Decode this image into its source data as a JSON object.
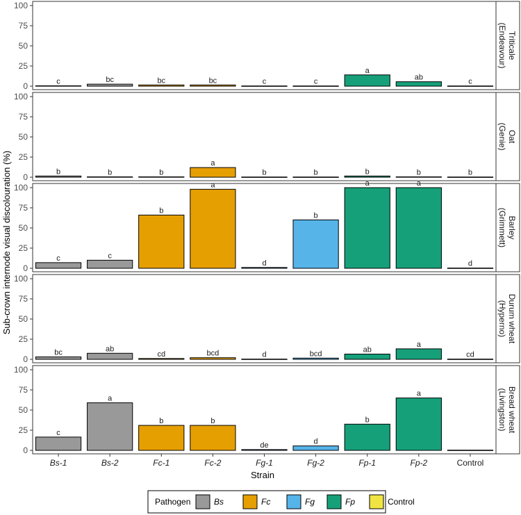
{
  "chart_data": {
    "type": "bar",
    "xlabel": "Strain",
    "ylabel": "Sub-crown internode visual discolouration (%)",
    "ylim": [
      0,
      100
    ],
    "yticks": [
      0,
      25,
      50,
      75,
      100
    ],
    "categories": [
      "Bs-1",
      "Bs-2",
      "Fc-1",
      "Fc-2",
      "Fg-1",
      "Fg-2",
      "Fp-1",
      "Fp-2",
      "Control"
    ],
    "category_pathogen": [
      "Bs",
      "Bs",
      "Fc",
      "Fc",
      "Fg",
      "Fg",
      "Fp",
      "Fp",
      "Control"
    ],
    "category_italic": [
      true,
      true,
      true,
      true,
      true,
      true,
      true,
      true,
      false
    ],
    "pathogen_colors": {
      "Bs": "#999999",
      "Fc": "#E69F00",
      "Fg": "#56B4E9",
      "Fp": "#16A07A",
      "Control": "#F0E442"
    },
    "panels": [
      {
        "strip_lines": [
          "Triticale",
          "(Endeavour)"
        ],
        "values": [
          0.5,
          2.5,
          1.5,
          1.5,
          0.3,
          0.3,
          14,
          5.5,
          0.3
        ],
        "letters": [
          "c",
          "bc",
          "bc",
          "bc",
          "c",
          "c",
          "a",
          "ab",
          "c"
        ]
      },
      {
        "strip_lines": [
          "Oat",
          "(Genie)"
        ],
        "values": [
          1.5,
          0.5,
          0.5,
          12,
          0.3,
          0.3,
          1.5,
          0.5,
          0.3
        ],
        "letters": [
          "b",
          "b",
          "b",
          "a",
          "b",
          "b",
          "b",
          "b",
          "b"
        ]
      },
      {
        "strip_lines": [
          "Barley",
          "(Grimmett)"
        ],
        "values": [
          7,
          10,
          66,
          98,
          1,
          60,
          100,
          100,
          0.3
        ],
        "letters": [
          "c",
          "c",
          "b",
          "a",
          "d",
          "b",
          "a",
          "a",
          "d"
        ]
      },
      {
        "strip_lines": [
          "Durum wheat",
          "(Hyperno)"
        ],
        "values": [
          3,
          7.5,
          1,
          2,
          0.3,
          1.5,
          6.5,
          13,
          0.3
        ],
        "letters": [
          "bc",
          "ab",
          "cd",
          "bcd",
          "d",
          "bcd",
          "ab",
          "a",
          "cd"
        ]
      },
      {
        "strip_lines": [
          "Bread wheat",
          "(Livingston)"
        ],
        "values": [
          16.5,
          59,
          31,
          31,
          1,
          5.5,
          32.5,
          65,
          0.3
        ],
        "letters": [
          "c",
          "a",
          "b",
          "b",
          "de",
          "d",
          "b",
          "a",
          ""
        ]
      }
    ],
    "legend": {
      "title": "Pathogen",
      "placement": "bottom",
      "entries": [
        {
          "key": "Bs",
          "label": "Bs",
          "italic": true
        },
        {
          "key": "Fc",
          "label": "Fc",
          "italic": true
        },
        {
          "key": "Fg",
          "label": "Fg",
          "italic": true
        },
        {
          "key": "Fp",
          "label": "Fp",
          "italic": true
        },
        {
          "key": "Control",
          "label": "Control",
          "italic": false
        }
      ]
    },
    "grid": false
  }
}
